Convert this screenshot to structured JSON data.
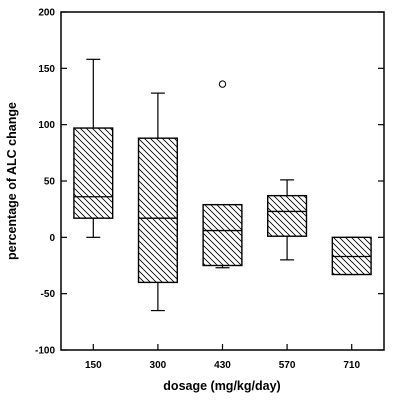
{
  "chart_data": {
    "type": "boxplot",
    "xlabel": "dosage (mg/kg/day)",
    "ylabel": "percentage of ALC change",
    "ylim": [
      -100,
      200
    ],
    "yticks": [
      -100,
      -50,
      0,
      50,
      100,
      150,
      200
    ],
    "categories": [
      "150",
      "300",
      "430",
      "570",
      "710"
    ],
    "boxes": [
      {
        "category": "150",
        "whisker_low": 0,
        "q1": 17,
        "median": 36,
        "q3": 97,
        "whisker_high": 158,
        "outliers": []
      },
      {
        "category": "300",
        "whisker_low": -65,
        "q1": -40,
        "median": 17,
        "q3": 88,
        "whisker_high": 128,
        "outliers": []
      },
      {
        "category": "430",
        "whisker_low": -27,
        "q1": -25,
        "median": 6,
        "q3": 29,
        "whisker_high": 29,
        "outliers": [
          136
        ]
      },
      {
        "category": "570",
        "whisker_low": -20,
        "q1": 1,
        "median": 23,
        "q3": 37,
        "whisker_high": 51,
        "outliers": []
      },
      {
        "category": "710",
        "whisker_low": -33,
        "q1": -33,
        "median": -17,
        "q3": 0,
        "whisker_high": 0,
        "outliers": []
      }
    ],
    "grid": false,
    "box_fill": "diagonal-hatch",
    "colors": {
      "stroke": "#000000",
      "background": "#ffffff"
    }
  }
}
